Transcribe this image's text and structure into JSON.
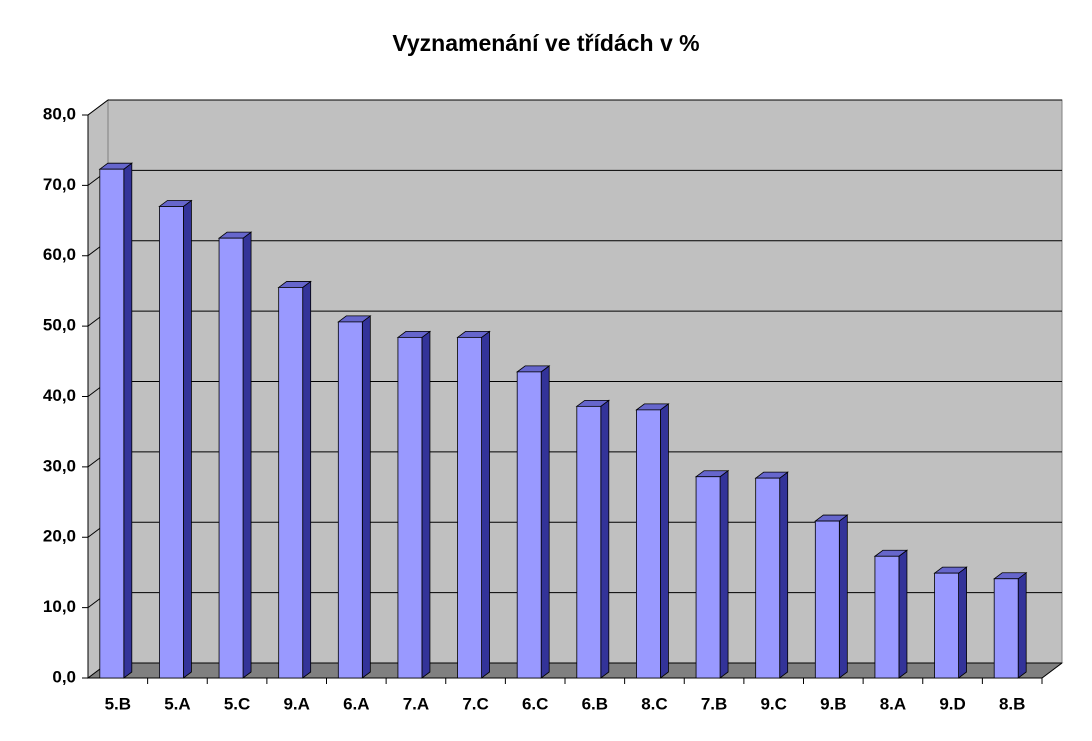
{
  "chart_data": {
    "type": "bar3d",
    "title": "Vyznamenání ve třídách v %",
    "categories": [
      "5.B",
      "5.A",
      "5.C",
      "9.A",
      "6.A",
      "7.A",
      "7.C",
      "6.C",
      "6.B",
      "8.C",
      "7.B",
      "9.C",
      "9.B",
      "8.A",
      "9.D",
      "8.B"
    ],
    "values": [
      72.3,
      67.0,
      62.5,
      55.5,
      50.6,
      48.4,
      48.4,
      43.5,
      38.6,
      38.1,
      28.6,
      28.4,
      22.3,
      17.3,
      14.9,
      14.1
    ],
    "color": "#9999ff",
    "ylim": [
      0,
      80
    ],
    "yticks": [
      {
        "value": 0,
        "label": "0,0"
      },
      {
        "value": 10,
        "label": "10,0"
      },
      {
        "value": 20,
        "label": "20,0"
      },
      {
        "value": 30,
        "label": "30,0"
      },
      {
        "value": 40,
        "label": "40,0"
      },
      {
        "value": 50,
        "label": "50,0"
      },
      {
        "value": 60,
        "label": "60,0"
      },
      {
        "value": 70,
        "label": "70,0"
      },
      {
        "value": 80,
        "label": "80,0"
      }
    ],
    "grid": true
  }
}
